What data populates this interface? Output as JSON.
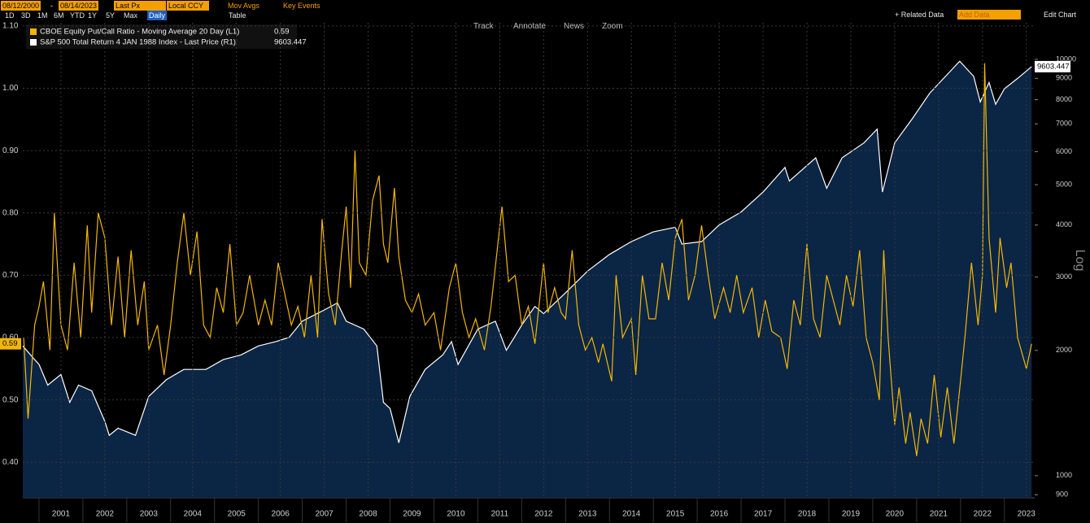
{
  "ui": {
    "date_from": "08/12/2000",
    "dash": "-",
    "date_to": "08/14/2023",
    "price_field": "Last Px",
    "currency": "Local CCY",
    "mov_avgs": "Mov Avgs",
    "key_events": "Key Events",
    "related_data": "+ Related Data",
    "add_data": "Add Data",
    "edit_chart": "Edit Chart",
    "ranges": [
      "1D",
      "3D",
      "1M",
      "6M",
      "YTD",
      "1Y",
      "5Y",
      "Max"
    ],
    "frequency": "Daily",
    "table": "Table",
    "tools": [
      "Track",
      "Annotate",
      "News",
      "Zoom"
    ]
  },
  "chart_data": {
    "type": "line",
    "y2scale": "log",
    "y2label": "Log",
    "grid": true,
    "legend": "top-left",
    "xlim": [
      2000.63,
      2023.69
    ],
    "xticks": [
      {
        "value": 2001.5,
        "label": "2001"
      },
      {
        "value": 2002.5,
        "label": "2002"
      },
      {
        "value": 2003.5,
        "label": "2003"
      },
      {
        "value": 2004.5,
        "label": "2004"
      },
      {
        "value": 2005.5,
        "label": "2005"
      },
      {
        "value": 2006.5,
        "label": "2006"
      },
      {
        "value": 2007.5,
        "label": "2007"
      },
      {
        "value": 2008.5,
        "label": "2008"
      },
      {
        "value": 2009.5,
        "label": "2009"
      },
      {
        "value": 2010.5,
        "label": "2010"
      },
      {
        "value": 2011.5,
        "label": "2011"
      },
      {
        "value": 2012.5,
        "label": "2012"
      },
      {
        "value": 2013.5,
        "label": "2013"
      },
      {
        "value": 2014.5,
        "label": "2014"
      },
      {
        "value": 2015.5,
        "label": "2015"
      },
      {
        "value": 2016.5,
        "label": "2016"
      },
      {
        "value": 2017.5,
        "label": "2017"
      },
      {
        "value": 2018.5,
        "label": "2018"
      },
      {
        "value": 2019.5,
        "label": "2019"
      },
      {
        "value": 2020.5,
        "label": "2020"
      },
      {
        "value": 2021.5,
        "label": "2021"
      },
      {
        "value": 2022.5,
        "label": "2022"
      },
      {
        "value": 2023.5,
        "label": "2023"
      }
    ],
    "ylim": [
      0.343,
      1.105
    ],
    "yticks": [
      {
        "value": 0.4,
        "label": "0.40"
      },
      {
        "value": 0.5,
        "label": "0.50"
      },
      {
        "value": 0.6,
        "label": "0.60"
      },
      {
        "value": 0.7,
        "label": "0.70"
      },
      {
        "value": 0.8,
        "label": "0.80"
      },
      {
        "value": 0.9,
        "label": "0.90"
      },
      {
        "value": 1.0,
        "label": "1.00"
      },
      {
        "value": 1.1,
        "label": "1.10"
      }
    ],
    "y2lim": [
      885,
      12240
    ],
    "y2ticks": [
      900,
      1000,
      2000,
      3000,
      4000,
      5000,
      6000,
      7000,
      8000,
      9000,
      10000
    ],
    "series": [
      {
        "name": "CBOE Equity Put/Call Ratio - Moving Average 20 Day (L1)",
        "color": "#f2b705",
        "axis": "y",
        "x": [
          2000.65,
          2000.75,
          2000.9,
          2001.0,
          2001.1,
          2001.25,
          2001.35,
          2001.5,
          2001.65,
          2001.8,
          2001.95,
          2002.1,
          2002.2,
          2002.35,
          2002.5,
          2002.65,
          2002.8,
          2002.95,
          2003.1,
          2003.25,
          2003.4,
          2003.5,
          2003.7,
          2003.85,
          2004.0,
          2004.15,
          2004.3,
          2004.45,
          2004.6,
          2004.75,
          2004.9,
          2005.05,
          2005.2,
          2005.35,
          2005.5,
          2005.65,
          2005.8,
          2006.0,
          2006.15,
          2006.3,
          2006.45,
          2006.6,
          2006.75,
          2006.9,
          2007.05,
          2007.2,
          2007.35,
          2007.45,
          2007.6,
          2007.75,
          2007.9,
          2008.0,
          2008.1,
          2008.2,
          2008.3,
          2008.45,
          2008.6,
          2008.75,
          2008.85,
          2008.95,
          2009.1,
          2009.2,
          2009.35,
          2009.5,
          2009.65,
          2009.8,
          2010.0,
          2010.15,
          2010.35,
          2010.5,
          2010.65,
          2010.8,
          2010.95,
          2011.15,
          2011.3,
          2011.55,
          2011.7,
          2011.85,
          2012.0,
          2012.15,
          2012.3,
          2012.5,
          2012.6,
          2012.75,
          2012.9,
          2013.0,
          2013.15,
          2013.3,
          2013.45,
          2013.6,
          2013.75,
          2013.85,
          2014.05,
          2014.15,
          2014.3,
          2014.5,
          2014.6,
          2014.75,
          2014.9,
          2015.05,
          2015.2,
          2015.35,
          2015.5,
          2015.65,
          2015.8,
          2015.95,
          2016.1,
          2016.25,
          2016.4,
          2016.6,
          2016.75,
          2016.9,
          2017.05,
          2017.25,
          2017.4,
          2017.55,
          2017.7,
          2017.9,
          2018.05,
          2018.2,
          2018.35,
          2018.5,
          2018.65,
          2018.8,
          2018.95,
          2019.1,
          2019.25,
          2019.4,
          2019.55,
          2019.7,
          2019.85,
          2020.0,
          2020.15,
          2020.25,
          2020.35,
          2020.5,
          2020.6,
          2020.75,
          2020.85,
          2021.0,
          2021.1,
          2021.25,
          2021.4,
          2021.55,
          2021.7,
          2021.85,
          2022.0,
          2022.1,
          2022.25,
          2022.4,
          2022.5,
          2022.55,
          2022.65,
          2022.8,
          2022.9,
          2023.05,
          2023.15,
          2023.3,
          2023.5,
          2023.62
        ],
        "values": [
          0.6,
          0.47,
          0.62,
          0.65,
          0.69,
          0.58,
          0.8,
          0.62,
          0.58,
          0.72,
          0.6,
          0.78,
          0.64,
          0.8,
          0.76,
          0.62,
          0.73,
          0.6,
          0.74,
          0.62,
          0.69,
          0.58,
          0.62,
          0.54,
          0.62,
          0.72,
          0.8,
          0.7,
          0.77,
          0.62,
          0.6,
          0.68,
          0.64,
          0.75,
          0.62,
          0.64,
          0.7,
          0.62,
          0.66,
          0.62,
          0.72,
          0.67,
          0.62,
          0.65,
          0.6,
          0.7,
          0.6,
          0.79,
          0.67,
          0.62,
          0.74,
          0.81,
          0.68,
          0.9,
          0.72,
          0.7,
          0.82,
          0.86,
          0.75,
          0.72,
          0.84,
          0.73,
          0.66,
          0.64,
          0.67,
          0.62,
          0.64,
          0.58,
          0.68,
          0.72,
          0.64,
          0.6,
          0.63,
          0.58,
          0.65,
          0.81,
          0.69,
          0.7,
          0.62,
          0.65,
          0.59,
          0.72,
          0.64,
          0.68,
          0.64,
          0.63,
          0.74,
          0.62,
          0.58,
          0.6,
          0.56,
          0.59,
          0.53,
          0.7,
          0.6,
          0.63,
          0.54,
          0.7,
          0.63,
          0.63,
          0.72,
          0.66,
          0.76,
          0.79,
          0.66,
          0.7,
          0.78,
          0.7,
          0.63,
          0.68,
          0.64,
          0.7,
          0.64,
          0.68,
          0.6,
          0.66,
          0.61,
          0.6,
          0.55,
          0.66,
          0.62,
          0.75,
          0.63,
          0.6,
          0.7,
          0.66,
          0.62,
          0.7,
          0.65,
          0.74,
          0.6,
          0.56,
          0.5,
          0.74,
          0.6,
          0.46,
          0.52,
          0.43,
          0.48,
          0.41,
          0.47,
          0.43,
          0.54,
          0.44,
          0.52,
          0.43,
          0.53,
          0.6,
          0.72,
          0.62,
          0.7,
          1.04,
          0.76,
          0.64,
          0.76,
          0.68,
          0.72,
          0.6,
          0.55,
          0.59
        ]
      },
      {
        "name": "S&P 500 Total Return 4 JAN 1988 Index - Last Price (R1)",
        "color": "#ffffff",
        "fill": "#0b2545",
        "axis": "y2",
        "x": [
          2000.63,
          2000.9,
          2001.0,
          2001.2,
          2001.5,
          2001.7,
          2001.9,
          2002.2,
          2002.5,
          2002.6,
          2002.8,
          2003.2,
          2003.5,
          2003.9,
          2004.3,
          2004.8,
          2005.2,
          2005.6,
          2006.0,
          2006.4,
          2006.7,
          2007.0,
          2007.5,
          2007.8,
          2008.0,
          2008.4,
          2008.7,
          2008.85,
          2009.0,
          2009.2,
          2009.45,
          2009.8,
          2010.2,
          2010.4,
          2010.55,
          2011.0,
          2011.4,
          2011.65,
          2012.0,
          2012.3,
          2012.5,
          2013.0,
          2013.5,
          2014.0,
          2014.5,
          2015.0,
          2015.5,
          2015.65,
          2016.1,
          2016.5,
          2017.0,
          2017.5,
          2018.0,
          2018.1,
          2018.7,
          2018.95,
          2019.3,
          2019.8,
          2020.1,
          2020.22,
          2020.5,
          2020.9,
          2021.3,
          2021.7,
          2021.98,
          2022.3,
          2022.45,
          2022.65,
          2022.8,
          2023.0,
          2023.3,
          2023.62
        ],
        "values": [
          2050,
          1900,
          1850,
          1650,
          1750,
          1500,
          1650,
          1600,
          1350,
          1250,
          1300,
          1250,
          1550,
          1700,
          1800,
          1800,
          1900,
          1950,
          2050,
          2100,
          2150,
          2350,
          2500,
          2600,
          2350,
          2250,
          2050,
          1500,
          1450,
          1200,
          1550,
          1800,
          1950,
          2100,
          1850,
          2250,
          2350,
          2000,
          2300,
          2550,
          2450,
          2750,
          3100,
          3400,
          3650,
          3850,
          3950,
          3600,
          3650,
          4000,
          4300,
          4800,
          5500,
          5100,
          5800,
          4900,
          5800,
          6300,
          6800,
          4800,
          6300,
          7200,
          8300,
          9200,
          9900,
          9100,
          7900,
          8800,
          7800,
          8500,
          9000,
          9603.447
        ]
      }
    ]
  }
}
